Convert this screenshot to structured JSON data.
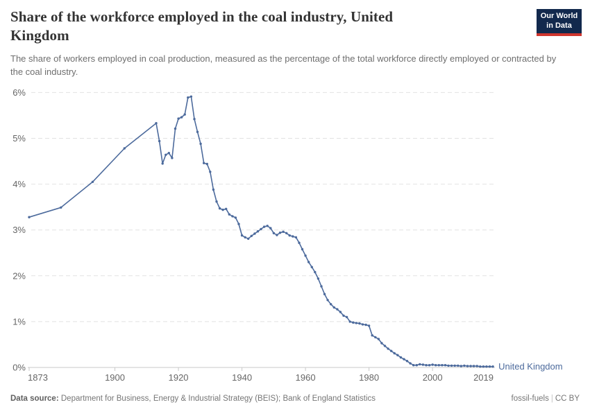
{
  "header": {
    "title": "Share of the workforce employed in the coal industry, United Kingdom",
    "subtitle": "The share of workers employed in coal production, measured as the percentage of the total workforce directly employed or contracted by the coal industry.",
    "logo": {
      "line1": "Our World",
      "line2": "in Data",
      "bg_color": "#12294d",
      "accent_color": "#cf352e"
    }
  },
  "footer": {
    "source_label": "Data source:",
    "source_text": " Department for Business, Energy & Industrial Strategy (BEIS); Bank of England Statistics",
    "right_slug": "fossil-fuels",
    "right_divider": "|",
    "right_license": "CC BY"
  },
  "chart_data": {
    "type": "line",
    "title": "Share of the workforce employed in the coal industry, United Kingdom",
    "xlabel": "",
    "ylabel": "",
    "xlim": [
      1873,
      2019
    ],
    "ylim": [
      0,
      6
    ],
    "grid": "horizontal-dashed",
    "legend_position": "end-of-line",
    "colors": {
      "line": "#4c6a9c",
      "gridline": "#e2e2e2",
      "axis": "#c9c9c9",
      "tick_label": "#666666"
    },
    "yticks": [
      {
        "v": 0,
        "label": "0%"
      },
      {
        "v": 1,
        "label": "1%"
      },
      {
        "v": 2,
        "label": "2%"
      },
      {
        "v": 3,
        "label": "3%"
      },
      {
        "v": 4,
        "label": "4%"
      },
      {
        "v": 5,
        "label": "5%"
      },
      {
        "v": 6,
        "label": "6%"
      }
    ],
    "xticks": [
      1873,
      1900,
      1920,
      1940,
      1960,
      1980,
      2000,
      2019
    ],
    "series": [
      {
        "name": "United Kingdom",
        "color": "#4c6a9c",
        "points": [
          [
            1873,
            3.28
          ],
          [
            1883,
            3.49
          ],
          [
            1893,
            4.05
          ],
          [
            1903,
            4.78
          ],
          [
            1913,
            5.33
          ],
          [
            1914,
            4.94
          ],
          [
            1915,
            4.45
          ],
          [
            1916,
            4.64
          ],
          [
            1917,
            4.68
          ],
          [
            1918,
            4.57
          ],
          [
            1919,
            5.21
          ],
          [
            1920,
            5.43
          ],
          [
            1921,
            5.46
          ],
          [
            1922,
            5.52
          ],
          [
            1923,
            5.89
          ],
          [
            1924,
            5.91
          ],
          [
            1925,
            5.42
          ],
          [
            1926,
            5.14
          ],
          [
            1927,
            4.88
          ],
          [
            1928,
            4.46
          ],
          [
            1929,
            4.44
          ],
          [
            1930,
            4.27
          ],
          [
            1931,
            3.88
          ],
          [
            1932,
            3.62
          ],
          [
            1933,
            3.47
          ],
          [
            1934,
            3.44
          ],
          [
            1935,
            3.46
          ],
          [
            1936,
            3.34
          ],
          [
            1937,
            3.3
          ],
          [
            1938,
            3.27
          ],
          [
            1939,
            3.13
          ],
          [
            1940,
            2.88
          ],
          [
            1941,
            2.84
          ],
          [
            1942,
            2.81
          ],
          [
            1943,
            2.87
          ],
          [
            1944,
            2.92
          ],
          [
            1945,
            2.97
          ],
          [
            1946,
            3.02
          ],
          [
            1947,
            3.07
          ],
          [
            1948,
            3.09
          ],
          [
            1949,
            3.04
          ],
          [
            1950,
            2.93
          ],
          [
            1951,
            2.89
          ],
          [
            1952,
            2.94
          ],
          [
            1953,
            2.96
          ],
          [
            1954,
            2.93
          ],
          [
            1955,
            2.88
          ],
          [
            1956,
            2.86
          ],
          [
            1957,
            2.84
          ],
          [
            1958,
            2.72
          ],
          [
            1959,
            2.58
          ],
          [
            1960,
            2.44
          ],
          [
            1961,
            2.3
          ],
          [
            1962,
            2.19
          ],
          [
            1963,
            2.08
          ],
          [
            1964,
            1.94
          ],
          [
            1965,
            1.77
          ],
          [
            1966,
            1.6
          ],
          [
            1967,
            1.47
          ],
          [
            1968,
            1.38
          ],
          [
            1969,
            1.31
          ],
          [
            1970,
            1.27
          ],
          [
            1971,
            1.21
          ],
          [
            1972,
            1.13
          ],
          [
            1973,
            1.1
          ],
          [
            1974,
            1.0
          ],
          [
            1975,
            0.98
          ],
          [
            1976,
            0.97
          ],
          [
            1977,
            0.96
          ],
          [
            1978,
            0.94
          ],
          [
            1979,
            0.93
          ],
          [
            1980,
            0.91
          ],
          [
            1981,
            0.7
          ],
          [
            1982,
            0.66
          ],
          [
            1983,
            0.62
          ],
          [
            1984,
            0.53
          ],
          [
            1985,
            0.47
          ],
          [
            1986,
            0.41
          ],
          [
            1987,
            0.36
          ],
          [
            1988,
            0.31
          ],
          [
            1989,
            0.27
          ],
          [
            1990,
            0.22
          ],
          [
            1991,
            0.18
          ],
          [
            1992,
            0.14
          ],
          [
            1993,
            0.09
          ],
          [
            1994,
            0.05
          ],
          [
            1995,
            0.05
          ],
          [
            1996,
            0.07
          ],
          [
            1997,
            0.06
          ],
          [
            1998,
            0.05
          ],
          [
            1999,
            0.05
          ],
          [
            2000,
            0.06
          ],
          [
            2001,
            0.05
          ],
          [
            2002,
            0.05
          ],
          [
            2003,
            0.05
          ],
          [
            2004,
            0.05
          ],
          [
            2005,
            0.04
          ],
          [
            2006,
            0.04
          ],
          [
            2007,
            0.04
          ],
          [
            2008,
            0.04
          ],
          [
            2009,
            0.03
          ],
          [
            2010,
            0.04
          ],
          [
            2011,
            0.03
          ],
          [
            2012,
            0.03
          ],
          [
            2013,
            0.03
          ],
          [
            2014,
            0.03
          ],
          [
            2015,
            0.02
          ],
          [
            2016,
            0.02
          ],
          [
            2017,
            0.02
          ],
          [
            2018,
            0.02
          ],
          [
            2019,
            0.02
          ]
        ]
      }
    ]
  }
}
